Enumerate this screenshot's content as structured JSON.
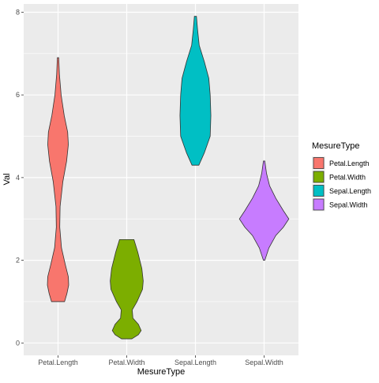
{
  "chart_data": {
    "type": "violin",
    "xlabel": "MesureType",
    "ylabel": "Val",
    "categories": [
      "Petal.Length",
      "Petal.Width",
      "Sepal.Length",
      "Sepal.Width"
    ],
    "ylim": [
      -0.3,
      8.2
    ],
    "yticks": [
      0,
      2,
      4,
      6,
      8
    ],
    "grid": true,
    "legend": {
      "title": "MesureType",
      "position": "right"
    },
    "colors": [
      "#F8766D",
      "#7CAE00",
      "#00BFC4",
      "#C77CFF"
    ],
    "series": [
      {
        "name": "Petal.Length",
        "min": 1.0,
        "max": 6.9,
        "profile": [
          [
            1.0,
            0.19
          ],
          [
            1.2,
            0.26
          ],
          [
            1.4,
            0.31
          ],
          [
            1.6,
            0.3
          ],
          [
            1.9,
            0.21
          ],
          [
            2.3,
            0.1
          ],
          [
            2.8,
            0.05
          ],
          [
            3.3,
            0.06
          ],
          [
            3.9,
            0.14
          ],
          [
            4.4,
            0.25
          ],
          [
            4.8,
            0.3
          ],
          [
            5.1,
            0.28
          ],
          [
            5.5,
            0.18
          ],
          [
            6.0,
            0.09
          ],
          [
            6.5,
            0.04
          ],
          [
            6.9,
            0.02
          ]
        ]
      },
      {
        "name": "Petal.Width",
        "min": 0.1,
        "max": 2.5,
        "profile": [
          [
            0.1,
            0.15
          ],
          [
            0.2,
            0.34
          ],
          [
            0.3,
            0.42
          ],
          [
            0.45,
            0.34
          ],
          [
            0.6,
            0.18
          ],
          [
            0.8,
            0.16
          ],
          [
            1.0,
            0.3
          ],
          [
            1.3,
            0.46
          ],
          [
            1.5,
            0.48
          ],
          [
            1.8,
            0.44
          ],
          [
            2.2,
            0.32
          ],
          [
            2.5,
            0.21
          ]
        ]
      },
      {
        "name": "Sepal.Length",
        "min": 4.3,
        "max": 7.9,
        "profile": [
          [
            4.3,
            0.1
          ],
          [
            4.6,
            0.26
          ],
          [
            5.0,
            0.43
          ],
          [
            5.5,
            0.45
          ],
          [
            6.0,
            0.43
          ],
          [
            6.4,
            0.39
          ],
          [
            6.8,
            0.26
          ],
          [
            7.2,
            0.11
          ],
          [
            7.6,
            0.06
          ],
          [
            7.9,
            0.03
          ]
        ]
      },
      {
        "name": "Sepal.Width",
        "min": 2.0,
        "max": 4.4,
        "profile": [
          [
            2.0,
            0.02
          ],
          [
            2.3,
            0.14
          ],
          [
            2.6,
            0.34
          ],
          [
            2.8,
            0.56
          ],
          [
            3.0,
            0.72
          ],
          [
            3.2,
            0.56
          ],
          [
            3.5,
            0.34
          ],
          [
            3.8,
            0.16
          ],
          [
            4.1,
            0.07
          ],
          [
            4.4,
            0.02
          ]
        ]
      }
    ]
  }
}
